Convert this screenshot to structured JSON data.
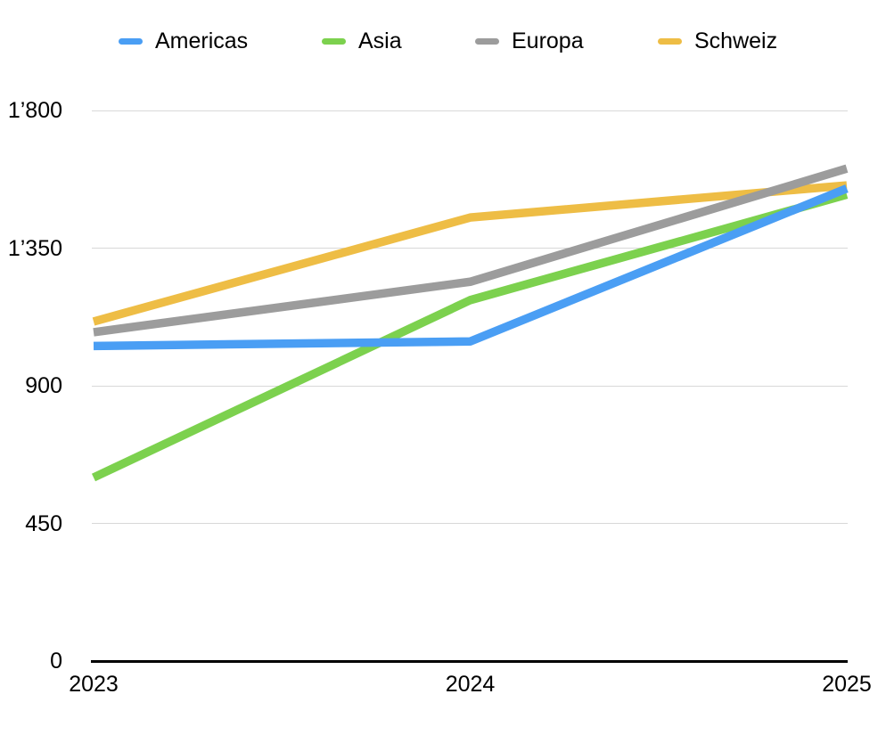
{
  "chart_data": {
    "type": "line",
    "title": "",
    "xlabel": "",
    "ylabel": "",
    "x": [
      "2023",
      "2024",
      "2025"
    ],
    "series": [
      {
        "name": "Americas",
        "color": "#4A9EF4",
        "values": [
          1030,
          1045,
          1545
        ]
      },
      {
        "name": "Asia",
        "color": "#7CD14E",
        "values": [
          600,
          1180,
          1525
        ]
      },
      {
        "name": "Europa",
        "color": "#9C9C9C",
        "values": [
          1075,
          1240,
          1610
        ]
      },
      {
        "name": "Schweiz",
        "color": "#EEBD45",
        "values": [
          1110,
          1450,
          1555
        ]
      }
    ],
    "ylim": [
      0,
      1800
    ],
    "yticks": [
      {
        "value": 0,
        "label": "0"
      },
      {
        "value": 450,
        "label": "450"
      },
      {
        "value": 900,
        "label": "900"
      },
      {
        "value": 1350,
        "label": "1’350"
      },
      {
        "value": 1800,
        "label": "1’800"
      }
    ],
    "grid": true,
    "legend_position": "top",
    "draw_order": [
      "Schweiz",
      "Europa",
      "Asia",
      "Americas"
    ],
    "colors": {
      "gridline": "#d8d8d8",
      "axis": "#000000",
      "text": "#000000",
      "background": "#ffffff"
    }
  }
}
